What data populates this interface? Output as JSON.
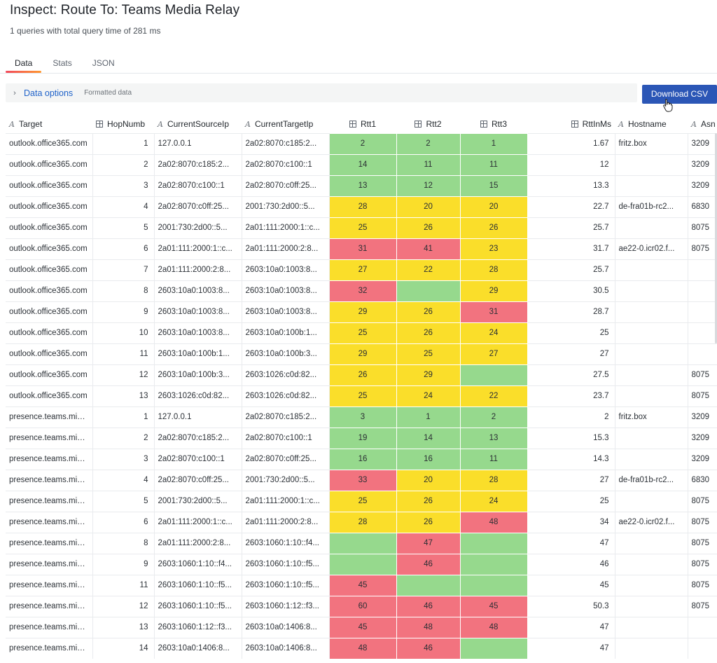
{
  "header": {
    "title": "Inspect: Route To: Teams Media Relay",
    "subtitle": "1 queries with total query time of 281 ms"
  },
  "tabs": [
    {
      "label": "Data",
      "active": true
    },
    {
      "label": "Stats",
      "active": false
    },
    {
      "label": "JSON",
      "active": false
    }
  ],
  "options": {
    "label": "Data options",
    "sub": "Formatted data"
  },
  "download_label": "Download CSV",
  "colors": {
    "green": "#96d98d",
    "yellow": "#fade2a",
    "red": "#f2737f",
    "accent": "#2b56b6"
  },
  "columns": [
    "Target",
    "HopNumb",
    "CurrentSourceIp",
    "CurrentTargetIp",
    "Rtt1",
    "Rtt2",
    "Rtt3",
    "RttInMs",
    "Hostname",
    "Asn"
  ],
  "rows": [
    {
      "target": "outlook.office365.com",
      "hop": "1",
      "src": "127.0.0.1",
      "dst": "2a02:8070:c185:2...",
      "rtt1": "2",
      "c1": "g",
      "rtt2": "2",
      "c2": "g",
      "rtt3": "1",
      "c3": "g",
      "ms": "1.67",
      "host": "fritz.box",
      "asn": "3209"
    },
    {
      "target": "outlook.office365.com",
      "hop": "2",
      "src": "2a02:8070:c185:2...",
      "dst": "2a02:8070:c100::1",
      "rtt1": "14",
      "c1": "g",
      "rtt2": "11",
      "c2": "g",
      "rtt3": "11",
      "c3": "g",
      "ms": "12",
      "host": "",
      "asn": "3209"
    },
    {
      "target": "outlook.office365.com",
      "hop": "3",
      "src": "2a02:8070:c100::1",
      "dst": "2a02:8070:c0ff:25...",
      "rtt1": "13",
      "c1": "g",
      "rtt2": "12",
      "c2": "g",
      "rtt3": "15",
      "c3": "g",
      "ms": "13.3",
      "host": "",
      "asn": "3209"
    },
    {
      "target": "outlook.office365.com",
      "hop": "4",
      "src": "2a02:8070:c0ff:25...",
      "dst": "2001:730:2d00::5...",
      "rtt1": "28",
      "c1": "y",
      "rtt2": "20",
      "c2": "y",
      "rtt3": "20",
      "c3": "y",
      "ms": "22.7",
      "host": "de-fra01b-rc2...",
      "asn": "6830"
    },
    {
      "target": "outlook.office365.com",
      "hop": "5",
      "src": "2001:730:2d00::5...",
      "dst": "2a01:111:2000:1::c...",
      "rtt1": "25",
      "c1": "y",
      "rtt2": "26",
      "c2": "y",
      "rtt3": "26",
      "c3": "y",
      "ms": "25.7",
      "host": "",
      "asn": "8075"
    },
    {
      "target": "outlook.office365.com",
      "hop": "6",
      "src": "2a01:111:2000:1::c...",
      "dst": "2a01:111:2000:2:8...",
      "rtt1": "31",
      "c1": "r",
      "rtt2": "41",
      "c2": "r",
      "rtt3": "23",
      "c3": "y",
      "ms": "31.7",
      "host": "ae22-0.icr02.f...",
      "asn": "8075"
    },
    {
      "target": "outlook.office365.com",
      "hop": "7",
      "src": "2a01:111:2000:2:8...",
      "dst": "2603:10a0:1003:8...",
      "rtt1": "27",
      "c1": "y",
      "rtt2": "22",
      "c2": "y",
      "rtt3": "28",
      "c3": "y",
      "ms": "25.7",
      "host": "",
      "asn": ""
    },
    {
      "target": "outlook.office365.com",
      "hop": "8",
      "src": "2603:10a0:1003:8...",
      "dst": "2603:10a0:1003:8...",
      "rtt1": "32",
      "c1": "r",
      "rtt2": "",
      "c2": "g",
      "rtt3": "29",
      "c3": "y",
      "ms": "30.5",
      "host": "",
      "asn": ""
    },
    {
      "target": "outlook.office365.com",
      "hop": "9",
      "src": "2603:10a0:1003:8...",
      "dst": "2603:10a0:1003:8...",
      "rtt1": "29",
      "c1": "y",
      "rtt2": "26",
      "c2": "y",
      "rtt3": "31",
      "c3": "r",
      "ms": "28.7",
      "host": "",
      "asn": ""
    },
    {
      "target": "outlook.office365.com",
      "hop": "10",
      "src": "2603:10a0:1003:8...",
      "dst": "2603:10a0:100b:1...",
      "rtt1": "25",
      "c1": "y",
      "rtt2": "26",
      "c2": "y",
      "rtt3": "24",
      "c3": "y",
      "ms": "25",
      "host": "",
      "asn": ""
    },
    {
      "target": "outlook.office365.com",
      "hop": "11",
      "src": "2603:10a0:100b:1...",
      "dst": "2603:10a0:100b:3...",
      "rtt1": "29",
      "c1": "y",
      "rtt2": "25",
      "c2": "y",
      "rtt3": "27",
      "c3": "y",
      "ms": "27",
      "host": "",
      "asn": ""
    },
    {
      "target": "outlook.office365.com",
      "hop": "12",
      "src": "2603:10a0:100b:3...",
      "dst": "2603:1026:c0d:82...",
      "rtt1": "26",
      "c1": "y",
      "rtt2": "29",
      "c2": "y",
      "rtt3": "",
      "c3": "g",
      "ms": "27.5",
      "host": "",
      "asn": "8075"
    },
    {
      "target": "outlook.office365.com",
      "hop": "13",
      "src": "2603:1026:c0d:82...",
      "dst": "2603:1026:c0d:82...",
      "rtt1": "25",
      "c1": "y",
      "rtt2": "24",
      "c2": "y",
      "rtt3": "22",
      "c3": "y",
      "ms": "23.7",
      "host": "",
      "asn": "8075"
    },
    {
      "target": "presence.teams.microsoft.com",
      "hop": "1",
      "src": "127.0.0.1",
      "dst": "2a02:8070:c185:2...",
      "rtt1": "3",
      "c1": "g",
      "rtt2": "1",
      "c2": "g",
      "rtt3": "2",
      "c3": "g",
      "ms": "2",
      "host": "fritz.box",
      "asn": "3209"
    },
    {
      "target": "presence.teams.microsoft.com",
      "hop": "2",
      "src": "2a02:8070:c185:2...",
      "dst": "2a02:8070:c100::1",
      "rtt1": "19",
      "c1": "g",
      "rtt2": "14",
      "c2": "g",
      "rtt3": "13",
      "c3": "g",
      "ms": "15.3",
      "host": "",
      "asn": "3209"
    },
    {
      "target": "presence.teams.microsoft.com",
      "hop": "3",
      "src": "2a02:8070:c100::1",
      "dst": "2a02:8070:c0ff:25...",
      "rtt1": "16",
      "c1": "g",
      "rtt2": "16",
      "c2": "g",
      "rtt3": "11",
      "c3": "g",
      "ms": "14.3",
      "host": "",
      "asn": "3209"
    },
    {
      "target": "presence.teams.microsoft.com",
      "hop": "4",
      "src": "2a02:8070:c0ff:25...",
      "dst": "2001:730:2d00::5...",
      "rtt1": "33",
      "c1": "r",
      "rtt2": "20",
      "c2": "y",
      "rtt3": "28",
      "c3": "y",
      "ms": "27",
      "host": "de-fra01b-rc2...",
      "asn": "6830"
    },
    {
      "target": "presence.teams.microsoft.com",
      "hop": "5",
      "src": "2001:730:2d00::5...",
      "dst": "2a01:111:2000:1::c...",
      "rtt1": "25",
      "c1": "y",
      "rtt2": "26",
      "c2": "y",
      "rtt3": "24",
      "c3": "y",
      "ms": "25",
      "host": "",
      "asn": "8075"
    },
    {
      "target": "presence.teams.microsoft.com",
      "hop": "6",
      "src": "2a01:111:2000:1::c...",
      "dst": "2a01:111:2000:2:8...",
      "rtt1": "28",
      "c1": "y",
      "rtt2": "26",
      "c2": "y",
      "rtt3": "48",
      "c3": "r",
      "ms": "34",
      "host": "ae22-0.icr02.f...",
      "asn": "8075"
    },
    {
      "target": "presence.teams.microsoft.com",
      "hop": "8",
      "src": "2a01:111:2000:2:8...",
      "dst": "2603:1060:1:10::f4...",
      "rtt1": "",
      "c1": "g",
      "rtt2": "47",
      "c2": "r",
      "rtt3": "",
      "c3": "g",
      "ms": "47",
      "host": "",
      "asn": "8075"
    },
    {
      "target": "presence.teams.microsoft.com",
      "hop": "9",
      "src": "2603:1060:1:10::f4...",
      "dst": "2603:1060:1:10::f5...",
      "rtt1": "",
      "c1": "g",
      "rtt2": "46",
      "c2": "r",
      "rtt3": "",
      "c3": "g",
      "ms": "46",
      "host": "",
      "asn": "8075"
    },
    {
      "target": "presence.teams.microsoft.com",
      "hop": "11",
      "src": "2603:1060:1:10::f5...",
      "dst": "2603:1060:1:10::f5...",
      "rtt1": "45",
      "c1": "r",
      "rtt2": "",
      "c2": "g",
      "rtt3": "",
      "c3": "g",
      "ms": "45",
      "host": "",
      "asn": "8075"
    },
    {
      "target": "presence.teams.microsoft.com",
      "hop": "12",
      "src": "2603:1060:1:10::f5...",
      "dst": "2603:1060:1:12::f3...",
      "rtt1": "60",
      "c1": "r",
      "rtt2": "46",
      "c2": "r",
      "rtt3": "45",
      "c3": "r",
      "ms": "50.3",
      "host": "",
      "asn": "8075"
    },
    {
      "target": "presence.teams.microsoft.com",
      "hop": "13",
      "src": "2603:1060:1:12::f3...",
      "dst": "2603:10a0:1406:8...",
      "rtt1": "45",
      "c1": "r",
      "rtt2": "48",
      "c2": "r",
      "rtt3": "48",
      "c3": "r",
      "ms": "47",
      "host": "",
      "asn": ""
    },
    {
      "target": "presence.teams.microsoft.com",
      "hop": "14",
      "src": "2603:10a0:1406:8...",
      "dst": "2603:10a0:1406:8...",
      "rtt1": "48",
      "c1": "r",
      "rtt2": "46",
      "c2": "r",
      "rtt3": "",
      "c3": "g",
      "ms": "47",
      "host": "",
      "asn": ""
    }
  ]
}
